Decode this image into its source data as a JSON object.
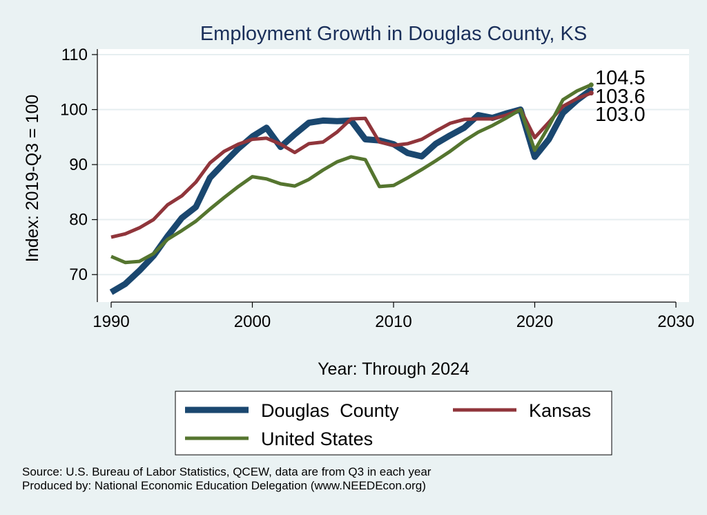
{
  "chart_data": {
    "type": "line",
    "title": "Employment Growth in Douglas County, KS",
    "xlabel": "Year: Through 2024",
    "ylabel": "Index: 2019-Q3 = 100",
    "xlim": [
      1990,
      2030
    ],
    "ylim": [
      65,
      111
    ],
    "xticks": [
      1990,
      2000,
      2010,
      2020,
      2030
    ],
    "yticks": [
      70,
      80,
      90,
      100,
      110
    ],
    "grid": true,
    "legend_position": "bottom",
    "x": [
      1990,
      1991,
      1992,
      1993,
      1994,
      1995,
      1996,
      1997,
      1998,
      1999,
      2000,
      2001,
      2002,
      2003,
      2004,
      2005,
      2006,
      2007,
      2008,
      2009,
      2010,
      2011,
      2012,
      2013,
      2014,
      2015,
      2016,
      2017,
      2018,
      2019,
      2020,
      2021,
      2022,
      2023,
      2024
    ],
    "series": [
      {
        "name": "Douglas  County",
        "color": "#1a476f",
        "width": 9,
        "values": [
          66.8,
          68.3,
          70.7,
          73.4,
          77.0,
          80.3,
          82.3,
          87.6,
          90.3,
          92.9,
          95.1,
          96.7,
          93.2,
          95.5,
          97.6,
          98.0,
          97.9,
          98.0,
          94.6,
          94.4,
          93.7,
          92.1,
          91.5,
          93.8,
          95.3,
          96.7,
          99.0,
          98.5,
          99.3,
          100.0,
          91.4,
          94.6,
          99.4,
          101.7,
          103.6
        ],
        "end_label": "103.6"
      },
      {
        "name": "Kansas",
        "color": "#90353b",
        "width": 5,
        "values": [
          76.8,
          77.4,
          78.5,
          80.0,
          82.7,
          84.3,
          86.8,
          90.3,
          92.4,
          93.7,
          94.6,
          94.8,
          93.7,
          92.2,
          93.8,
          94.1,
          95.9,
          98.3,
          98.4,
          94.1,
          93.5,
          93.8,
          94.6,
          96.1,
          97.5,
          98.2,
          98.3,
          98.3,
          99.0,
          100.0,
          94.9,
          97.7,
          100.6,
          102.0,
          103.0
        ],
        "end_label": "103.0"
      },
      {
        "name": "United States",
        "color": "#55752f",
        "width": 5,
        "values": [
          73.3,
          72.2,
          72.4,
          73.8,
          76.4,
          78.0,
          79.7,
          81.9,
          84.0,
          86.0,
          87.8,
          87.4,
          86.5,
          86.1,
          87.3,
          89.0,
          90.5,
          91.4,
          90.9,
          86.0,
          86.2,
          87.6,
          89.1,
          90.7,
          92.4,
          94.3,
          95.9,
          97.1,
          98.5,
          100.0,
          92.6,
          97.0,
          101.8,
          103.4,
          104.5
        ],
        "end_label": "104.5"
      }
    ]
  },
  "source": {
    "line1": "Source: U.S. Bureau of Labor Statistics, QCEW, data are from Q3 in each year",
    "line2": "Produced by: National Economic Education Delegation (www.NEEDEcon.org)"
  }
}
